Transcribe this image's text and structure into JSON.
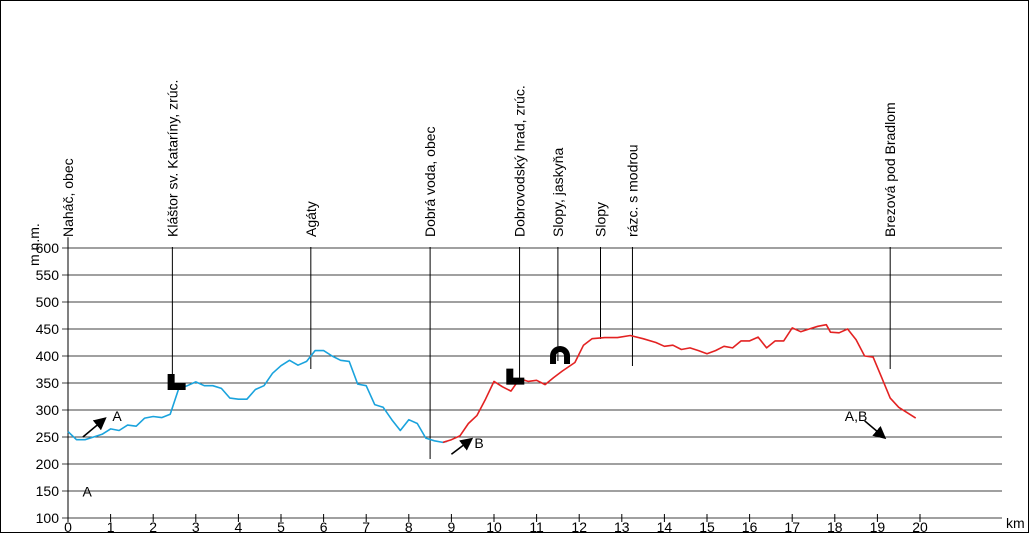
{
  "chart_data": {
    "type": "line",
    "ylabel": "m n.m.",
    "xlabel": "km",
    "xlim": [
      0,
      22
    ],
    "ylim": [
      100,
      620
    ],
    "x_ticks": [
      0,
      1,
      2,
      3,
      4,
      5,
      6,
      7,
      8,
      9,
      10,
      11,
      12,
      13,
      14,
      15,
      16,
      17,
      18,
      19,
      20
    ],
    "y_ticks": [
      100,
      150,
      200,
      250,
      300,
      350,
      400,
      450,
      500,
      550,
      600
    ],
    "grid": "horizontal",
    "series": [
      {
        "name": "A",
        "color": "#1aa3dd",
        "points": [
          [
            0,
            260
          ],
          [
            0.2,
            245
          ],
          [
            0.4,
            245
          ],
          [
            0.6,
            250
          ],
          [
            0.8,
            255
          ],
          [
            1.0,
            265
          ],
          [
            1.2,
            262
          ],
          [
            1.4,
            272
          ],
          [
            1.6,
            270
          ],
          [
            1.8,
            285
          ],
          [
            2.0,
            288
          ],
          [
            2.2,
            286
          ],
          [
            2.4,
            292
          ],
          [
            2.6,
            340
          ],
          [
            2.8,
            345
          ],
          [
            3.0,
            352
          ],
          [
            3.2,
            345
          ],
          [
            3.4,
            345
          ],
          [
            3.6,
            340
          ],
          [
            3.8,
            322
          ],
          [
            4.0,
            320
          ],
          [
            4.2,
            320
          ],
          [
            4.4,
            338
          ],
          [
            4.6,
            345
          ],
          [
            4.8,
            368
          ],
          [
            5.0,
            382
          ],
          [
            5.2,
            392
          ],
          [
            5.4,
            383
          ],
          [
            5.6,
            390
          ],
          [
            5.8,
            410
          ],
          [
            6.0,
            410
          ],
          [
            6.2,
            400
          ],
          [
            6.4,
            392
          ],
          [
            6.6,
            390
          ],
          [
            6.8,
            348
          ],
          [
            7.0,
            345
          ],
          [
            7.2,
            310
          ],
          [
            7.4,
            305
          ],
          [
            7.6,
            282
          ],
          [
            7.8,
            262
          ],
          [
            8.0,
            282
          ],
          [
            8.2,
            275
          ],
          [
            8.4,
            248
          ],
          [
            8.6,
            243
          ],
          [
            8.8,
            240
          ],
          [
            8.9,
            242
          ]
        ]
      },
      {
        "name": "B",
        "color": "#e32222",
        "points": [
          [
            8.8,
            240
          ],
          [
            9.0,
            245
          ],
          [
            9.2,
            252
          ],
          [
            9.4,
            275
          ],
          [
            9.6,
            290
          ],
          [
            9.8,
            320
          ],
          [
            10.0,
            353
          ],
          [
            10.2,
            343
          ],
          [
            10.4,
            335
          ],
          [
            10.6,
            358
          ],
          [
            10.8,
            353
          ],
          [
            11.0,
            355
          ],
          [
            11.2,
            347
          ],
          [
            11.4,
            360
          ],
          [
            11.6,
            372
          ],
          [
            11.9,
            388
          ],
          [
            12.1,
            420
          ],
          [
            12.3,
            432
          ],
          [
            12.6,
            434
          ],
          [
            12.9,
            434
          ],
          [
            13.2,
            438
          ],
          [
            13.5,
            432
          ],
          [
            13.8,
            425
          ],
          [
            14.0,
            418
          ],
          [
            14.2,
            420
          ],
          [
            14.4,
            412
          ],
          [
            14.6,
            415
          ],
          [
            14.8,
            410
          ],
          [
            15.0,
            404
          ],
          [
            15.2,
            410
          ],
          [
            15.4,
            418
          ],
          [
            15.6,
            415
          ],
          [
            15.8,
            428
          ],
          [
            16.0,
            428
          ],
          [
            16.2,
            435
          ],
          [
            16.4,
            415
          ],
          [
            16.6,
            428
          ],
          [
            16.8,
            428
          ],
          [
            17.0,
            452
          ],
          [
            17.2,
            445
          ],
          [
            17.4,
            450
          ],
          [
            17.6,
            455
          ],
          [
            17.8,
            458
          ],
          [
            17.9,
            444
          ],
          [
            18.1,
            443
          ],
          [
            18.3,
            450
          ],
          [
            18.5,
            430
          ],
          [
            18.7,
            400
          ],
          [
            18.9,
            398
          ],
          [
            19.1,
            360
          ],
          [
            19.3,
            322
          ],
          [
            19.5,
            305
          ],
          [
            19.7,
            295
          ],
          [
            19.9,
            285
          ]
        ]
      }
    ],
    "places": [
      {
        "label": "Naháč, obec",
        "km": 0
      },
      {
        "label": "Kláštor sv. Kataríny, zrúc.",
        "km": 2.45
      },
      {
        "label": "Agáty",
        "km": 5.7
      },
      {
        "label": "Dobrá voda, obec",
        "km": 8.5
      },
      {
        "label": "Dobrovodský hrad, zrúc.",
        "km": 10.6
      },
      {
        "label": "Slopy, jaskyňa",
        "km": 11.5
      },
      {
        "label": "Slopy",
        "km": 12.5
      },
      {
        "label": "rázc. s modrou",
        "km": 13.25
      },
      {
        "label": "Brezová pod Bradlom",
        "km": 19.3
      }
    ],
    "annotations": [
      {
        "text": "A",
        "km": 0.45,
        "y": 140
      },
      {
        "text": "A",
        "km": 1.15,
        "y": 280
      },
      {
        "text": "B",
        "km": 9.65,
        "y": 230
      },
      {
        "text": "A,B",
        "km": 18.5,
        "y": 280
      }
    ],
    "symbols": [
      {
        "name": "ruin-icon",
        "km": 2.55,
        "y": 350
      },
      {
        "name": "ruin-icon",
        "km": 10.5,
        "y": 360
      },
      {
        "name": "cave-icon",
        "km": 11.55,
        "y": 400
      }
    ]
  }
}
